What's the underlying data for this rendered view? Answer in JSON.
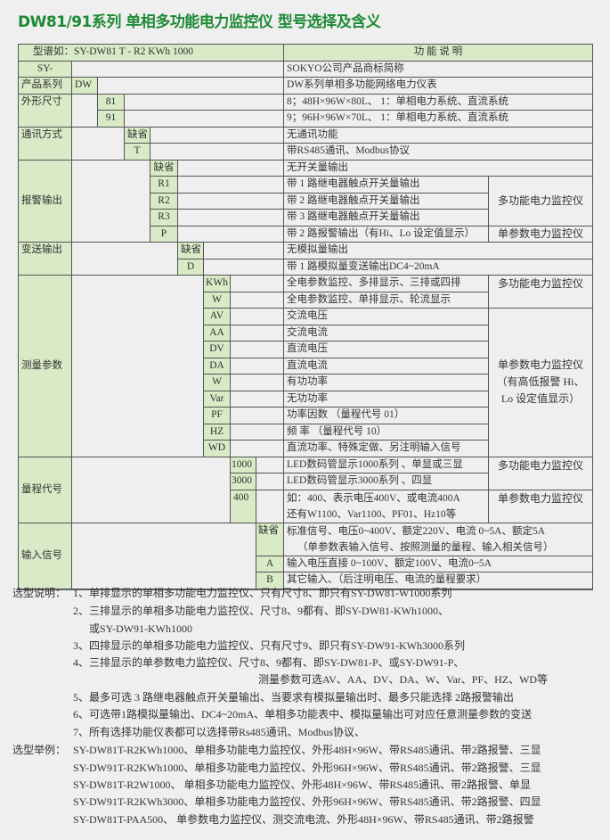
{
  "title": "DW81/91系列 单相多功能电力监控仪 型号选择及含义",
  "table": {
    "header": {
      "left": "型谱如：SY-DW81  T -  R2  KWh 1000",
      "right": "功 能 说 明"
    },
    "brand": {
      "code": "SY-",
      "desc": "SOKYO公司产品商标简称"
    },
    "series": {
      "label": "产品系列",
      "code": "DW",
      "desc": "DW系列单相多功能网络电力仪表"
    },
    "size": {
      "label": "外形尺寸",
      "items": [
        {
          "code": "81",
          "desc": "8；48H×96W×80L、    1：单相电力系统、直流系统"
        },
        {
          "code": "91",
          "desc": "9；96H×96W×70L、    1：单相电力系统、直流系统"
        }
      ]
    },
    "comm": {
      "label": "通讯方式",
      "items": [
        {
          "code": "缺省",
          "desc": "无通讯功能"
        },
        {
          "code": "T",
          "desc": "带RS485通讯、Modbus协议"
        }
      ]
    },
    "alarm": {
      "label": "报警输出",
      "items": [
        {
          "code": "缺省",
          "desc": "无开关量输出"
        },
        {
          "code": "R1",
          "desc": "带 1 路继电器触点开关量输出"
        },
        {
          "code": "R2",
          "desc": "带 2 路继电器触点开关量输出"
        },
        {
          "code": "R3",
          "desc": "带 3 路继电器触点开关量输出"
        },
        {
          "code": "P",
          "desc": "带 2 路报警输出（有Hi、Lo 设定值显示）"
        }
      ],
      "note_multi": "多功能电力监控仪",
      "note_single": "单参数电力监控仪"
    },
    "transmit": {
      "label": "变送输出",
      "items": [
        {
          "code": "缺省",
          "desc": "无模拟量输出"
        },
        {
          "code": "D",
          "desc": "带 1 路模拟量变送输出DC4~20mA"
        }
      ]
    },
    "measure": {
      "label": "测量参数",
      "items": [
        {
          "code": "KWh",
          "desc": "全电参数监控、多排显示、三排或四排"
        },
        {
          "code": "W",
          "desc": "全电参数监控、单排显示、轮流显示"
        },
        {
          "code": "AV",
          "desc": "交流电压"
        },
        {
          "code": "AA",
          "desc": "交流电流"
        },
        {
          "code": "DV",
          "desc": "直流电压"
        },
        {
          "code": "DA",
          "desc": "直流电流"
        },
        {
          "code": "W",
          "desc": "有功功率"
        },
        {
          "code": "Var",
          "desc": "无功功率"
        },
        {
          "code": "PF",
          "desc": "功率因数  （量程代号 01）"
        },
        {
          "code": "HZ",
          "desc": "频    率  （量程代号 10）"
        },
        {
          "code": "WD",
          "desc": "直流功率、特殊定做、另注明输入信号"
        }
      ],
      "note_multi": "多功能电力监控仪",
      "note_single": [
        "单参数电力监控仪",
        "（有高低报警 Hi、",
        "Lo 设定值显示）"
      ]
    },
    "range": {
      "label": "量程代号",
      "items": [
        {
          "code": "1000",
          "desc": "LED数码管显示1000系列 、单显或三显"
        },
        {
          "code": "3000",
          "desc": "LED数码管显示3000系列 、四显"
        },
        {
          "code": "400",
          "desc": [
            "如：400、表示电压400V、或电流400A",
            "还有W1100、Var1100、PF01、Hz10等"
          ]
        }
      ],
      "note_multi": "多功能电力监控仪",
      "note_single": "单参数电力监控仪"
    },
    "input": {
      "label": "输入信号",
      "items": [
        {
          "code": "缺省",
          "desc": [
            "标准信号、电压0~400V、额定220V、电流 0~5A、额定5A",
            "（单参数表输入信号、按照测量的量程、输入相关信号）"
          ]
        },
        {
          "code": "A",
          "desc": "输入电压直接 0~100V、额定100V、电流0~5A"
        },
        {
          "code": "B",
          "desc": "其它输入、（后注明电压、电流的量程要求）"
        }
      ]
    }
  },
  "notes": {
    "label": "选型说明：",
    "lines": [
      "1、单排显示的单相多功能电力监控仪、只有尺寸8、即只有SY-DW81-W1000系列",
      "2、三排显示的单相多功能电力监控仪、尺寸8、9都有、即SY-DW81-KWh1000、",
      "或SY-DW91-KWh1000",
      "3、四排显示的单相多功能电力监控仪、只有尺寸9、即只有SY-DW91-KWh3000系列",
      "4、三排显示的单参数电力监控仪、尺寸8、9都有、即SY-DW81-P、或SY-DW91-P、",
      "测量参数可选AV、AA、DV、DA、W、Var、PF、HZ、WD等",
      "5、最多可选 3 路继电器触点开关量输出、当要求有模拟量输出时、最多只能选择 2路报警输出",
      "6、可选带1路模拟量输出、DC4~20mA、单相多功能表中、模拟量输出可对应任意测量参数的变送",
      "7、所有选择功能仪表都可以选择带Rs485通讯、Modbus协议、"
    ]
  },
  "examples": {
    "label": "选型举例：",
    "lines": [
      "SY-DW81T-R2KWh1000、单相多功能电力监控仪、外形48H×96W、带RS485通讯、带2路报警、三显",
      "SY-DW91T-R2KWh1000、单相多功能电力监控仪、外形96H×96W、带RS485通讯、带2路报警、三显",
      "SY-DW81T-R2W1000、   单相多功能电力监控仪、外形48H×96W、带RS485通讯、带2路报警、单显",
      "SY-DW91T-R2KWh3000、单相多功能电力监控仪、外形96H×96W、带RS485通讯、带2路报警、四显",
      "SY-DW81T-PAA500、   单参数电力监控仪、测交流电流、外形48H×96W、带RS485通讯、带2路报警"
    ]
  },
  "colors": {
    "title": "#1e8a35",
    "cell_green": "#d8eac6",
    "border": "#555555",
    "background": "#efefef"
  }
}
